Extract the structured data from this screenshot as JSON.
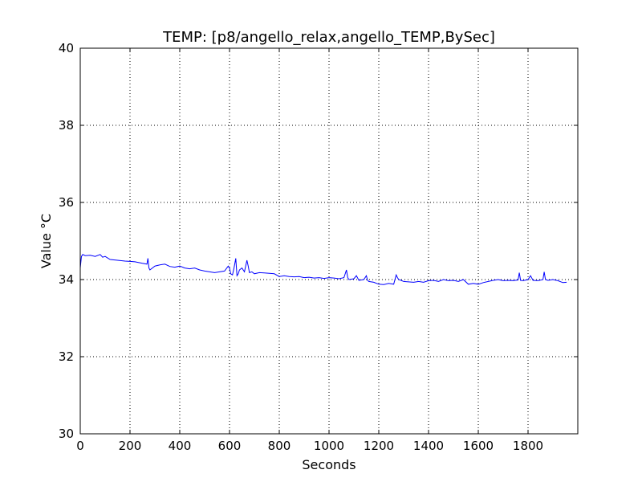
{
  "chart_data": {
    "type": "line",
    "title": "TEMP: [p8/angello_relax,angello_TEMP,BySec]",
    "xlabel": "Seconds",
    "ylabel": "Value °C",
    "xlim": [
      0,
      2000
    ],
    "ylim": [
      30,
      40
    ],
    "xticks": [
      0,
      200,
      400,
      600,
      800,
      1000,
      1200,
      1400,
      1600,
      1800
    ],
    "yticks": [
      30,
      32,
      34,
      36,
      38,
      40
    ],
    "grid": true,
    "legend": "none",
    "colors": {
      "line": "#0000ff",
      "grid": "#000000",
      "axes": "#000000"
    },
    "series": [
      {
        "x": [
          0,
          5,
          10,
          20,
          40,
          60,
          80,
          90,
          100,
          120,
          150,
          180,
          200,
          220,
          250,
          268,
          272,
          276,
          280,
          290,
          300,
          320,
          340,
          360,
          380,
          400,
          420,
          440,
          460,
          480,
          500,
          520,
          540,
          560,
          580,
          595,
          600,
          605,
          612,
          618,
          625,
          630,
          635,
          640,
          650,
          660,
          670,
          675,
          680,
          690,
          700,
          720,
          740,
          760,
          780,
          800,
          820,
          840,
          860,
          880,
          900,
          920,
          940,
          960,
          980,
          1000,
          1020,
          1040,
          1060,
          1070,
          1075,
          1080,
          1100,
          1110,
          1120,
          1140,
          1150,
          1155,
          1160,
          1180,
          1200,
          1220,
          1240,
          1260,
          1270,
          1275,
          1280,
          1290,
          1300,
          1320,
          1340,
          1360,
          1380,
          1400,
          1420,
          1440,
          1460,
          1480,
          1500,
          1520,
          1540,
          1560,
          1580,
          1600,
          1620,
          1640,
          1660,
          1680,
          1700,
          1720,
          1740,
          1760,
          1765,
          1770,
          1780,
          1800,
          1810,
          1820,
          1840,
          1860,
          1865,
          1870,
          1880,
          1900,
          1920,
          1940,
          1955
        ],
        "y": [
          34.3,
          34.6,
          34.65,
          34.62,
          34.63,
          34.6,
          34.65,
          34.58,
          34.6,
          34.52,
          34.5,
          34.48,
          34.47,
          34.46,
          34.42,
          34.4,
          34.55,
          34.3,
          34.25,
          34.3,
          34.35,
          34.38,
          34.4,
          34.34,
          34.32,
          34.35,
          34.3,
          34.28,
          34.3,
          34.25,
          34.22,
          34.2,
          34.18,
          34.2,
          34.22,
          34.35,
          34.3,
          34.15,
          34.12,
          34.3,
          34.55,
          34.1,
          34.15,
          34.25,
          34.3,
          34.2,
          34.5,
          34.35,
          34.18,
          34.2,
          34.15,
          34.18,
          34.17,
          34.16,
          34.15,
          34.08,
          34.1,
          34.08,
          34.07,
          34.08,
          34.05,
          34.06,
          34.04,
          34.05,
          34.03,
          34.05,
          34.04,
          34.02,
          34.05,
          34.25,
          34.05,
          34.0,
          34.02,
          34.1,
          33.98,
          34.0,
          34.1,
          33.98,
          33.95,
          33.93,
          33.88,
          33.87,
          33.9,
          33.88,
          34.12,
          34.05,
          34.0,
          33.98,
          33.95,
          33.94,
          33.93,
          33.95,
          33.93,
          33.97,
          33.98,
          33.95,
          34.0,
          33.97,
          33.98,
          33.95,
          34.0,
          33.88,
          33.9,
          33.88,
          33.92,
          33.95,
          33.98,
          34.0,
          33.97,
          33.98,
          33.97,
          33.99,
          34.18,
          33.98,
          33.97,
          34.0,
          34.1,
          33.98,
          33.97,
          34.0,
          34.2,
          34.0,
          33.98,
          34.0,
          33.97,
          33.92,
          33.93
        ]
      }
    ]
  }
}
